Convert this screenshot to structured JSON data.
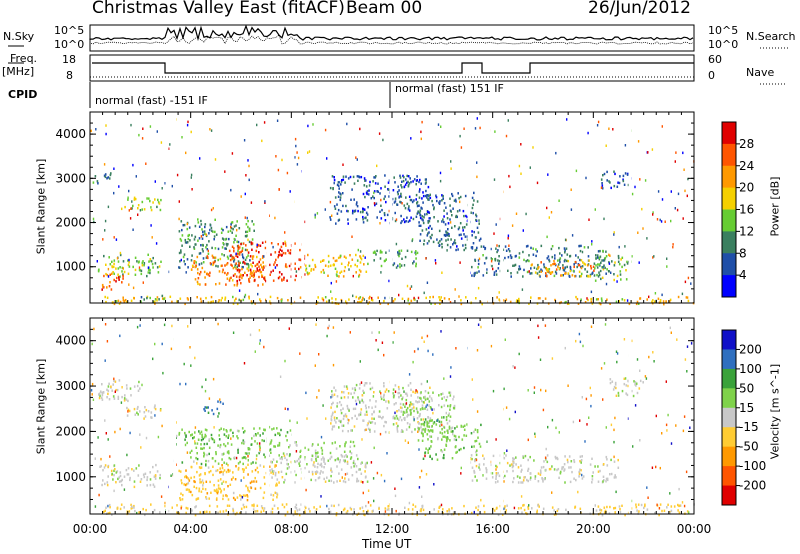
{
  "header": {
    "station": "Christmas Valley East (fitACF)",
    "beam": "Beam 00",
    "date": "26/Jun/2012"
  },
  "status_panels": {
    "nsky_label": "N.Sky",
    "nsky_ticks": [
      "10^5",
      "10^0"
    ],
    "nsearch_label": "N.Search",
    "nsearch_ticks": [
      "10^5",
      "10^0"
    ],
    "freq_label": "Freq.",
    "freq_unit": "[MHz]",
    "freq_ticks": [
      "18",
      "8"
    ],
    "nave_label": "Nave",
    "nave_ticks": [
      "60",
      "0"
    ],
    "cpid_label": "CPID",
    "cpid_segments": [
      {
        "text": "normal (fast) -151 IF"
      },
      {
        "text": "normal (fast) 151 IF"
      }
    ]
  },
  "chart_data": [
    {
      "type": "heatmap",
      "title": "",
      "xlabel": "",
      "ylabel": "Slant Range [km]",
      "xlim": [
        0,
        24
      ],
      "ylim": [
        180,
        4500
      ],
      "yticks": [
        "1000",
        "2000",
        "3000",
        "4000"
      ],
      "colorbar": {
        "label": "Power [dB]",
        "ticks": [
          "4",
          "8",
          "12",
          "16",
          "20",
          "24",
          "28"
        ],
        "range": [
          0,
          30
        ],
        "colors": [
          "#0000ff",
          "#1f4fa8",
          "#3a7f5f",
          "#66cc33",
          "#f5d000",
          "#ff9900",
          "#ff5500",
          "#e00000"
        ]
      },
      "blobs": [
        {
          "t0": 0.3,
          "t1": 2.8,
          "r0": 800,
          "r1": 1300,
          "v": 13
        },
        {
          "t0": 1.3,
          "t1": 2.8,
          "r0": 2300,
          "r1": 2600,
          "v": 14
        },
        {
          "t0": 0.1,
          "t1": 0.8,
          "r0": 2900,
          "r1": 3200,
          "v": 8
        },
        {
          "t0": 0.4,
          "t1": 1.3,
          "r0": 500,
          "r1": 900,
          "v": 24
        },
        {
          "t0": 3.5,
          "t1": 6.5,
          "r0": 1000,
          "r1": 2100,
          "v": 10
        },
        {
          "t0": 4.0,
          "t1": 7.0,
          "r0": 600,
          "r1": 1300,
          "v": 22
        },
        {
          "t0": 5.5,
          "t1": 8.5,
          "r0": 700,
          "r1": 1600,
          "v": 26
        },
        {
          "t0": 8.5,
          "t1": 11.0,
          "r0": 800,
          "r1": 1300,
          "v": 18
        },
        {
          "t0": 9.5,
          "t1": 13.5,
          "r0": 2000,
          "r1": 3100,
          "v": 6
        },
        {
          "t0": 11.0,
          "t1": 13.0,
          "r0": 1000,
          "r1": 1400,
          "v": 11
        },
        {
          "t0": 13.0,
          "t1": 15.5,
          "r0": 1400,
          "r1": 2700,
          "v": 7
        },
        {
          "t0": 15.0,
          "t1": 20.5,
          "r0": 800,
          "r1": 1500,
          "v": 8
        },
        {
          "t0": 17.5,
          "t1": 20.0,
          "r0": 800,
          "r1": 1200,
          "v": 20
        },
        {
          "t0": 20.0,
          "t1": 21.5,
          "r0": 700,
          "r1": 1300,
          "v": 12
        },
        {
          "t0": 20.3,
          "t1": 21.5,
          "r0": 2800,
          "r1": 3200,
          "v": 6
        },
        {
          "t0": 0.5,
          "t1": 24.0,
          "r0": 180,
          "r1": 350,
          "v": 18
        },
        {
          "t0": 2.0,
          "t1": 3.2,
          "r0": 250,
          "r1": 400,
          "v": 9
        }
      ]
    },
    {
      "type": "heatmap",
      "title": "",
      "xlabel": "Time UT",
      "ylabel": "Slant Range [km]",
      "xlim": [
        0,
        24
      ],
      "ylim": [
        180,
        4500
      ],
      "yticks": [
        "1000",
        "2000",
        "3000",
        "4000"
      ],
      "xticks": [
        "00:00",
        "04:00",
        "08:00",
        "12:00",
        "16:00",
        "20:00",
        "00:00"
      ],
      "colorbar": {
        "label": "Velocity [m s^-1]",
        "ticks": [
          "200",
          "100",
          "50",
          "15",
          "-15",
          "-50",
          "-100",
          "-200"
        ],
        "range": [
          -250,
          250
        ],
        "colors": [
          "#1010c8",
          "#2f6fbf",
          "#3aa23a",
          "#7fd24a",
          "#c8c8c8",
          "#ffcc33",
          "#ff9900",
          "#ff5500",
          "#e00000"
        ]
      },
      "blobs": [
        {
          "t0": 0.3,
          "t1": 2.8,
          "r0": 800,
          "r1": 1300,
          "v": 0
        },
        {
          "t0": 1.3,
          "t1": 2.8,
          "r0": 2300,
          "r1": 2600,
          "v": 0
        },
        {
          "t0": 0.3,
          "t1": 2.0,
          "r0": 2700,
          "r1": 3200,
          "v": 0
        },
        {
          "t0": 3.5,
          "t1": 7.5,
          "r0": 500,
          "r1": 1300,
          "v": -60
        },
        {
          "t0": 3.5,
          "t1": 8.0,
          "r0": 1300,
          "r1": 2100,
          "v": 60
        },
        {
          "t0": 4.5,
          "t1": 5.3,
          "r0": 2400,
          "r1": 2700,
          "v": 150
        },
        {
          "t0": 7.0,
          "t1": 11.0,
          "r0": 900,
          "r1": 1500,
          "v": 0
        },
        {
          "t0": 8.0,
          "t1": 10.5,
          "r0": 1300,
          "r1": 1800,
          "v": 40
        },
        {
          "t0": 9.5,
          "t1": 13.5,
          "r0": 2000,
          "r1": 3100,
          "v": 0
        },
        {
          "t0": 12.0,
          "t1": 14.5,
          "r0": 2000,
          "r1": 2900,
          "v": 30
        },
        {
          "t0": 13.0,
          "t1": 15.5,
          "r0": 1400,
          "r1": 2300,
          "v": 60
        },
        {
          "t0": 15.0,
          "t1": 21.0,
          "r0": 900,
          "r1": 1500,
          "v": 0
        },
        {
          "t0": 20.5,
          "t1": 22.0,
          "r0": 2800,
          "r1": 3200,
          "v": 0
        },
        {
          "t0": 0.5,
          "t1": 24.0,
          "r0": 180,
          "r1": 420,
          "v": -40
        }
      ]
    }
  ]
}
